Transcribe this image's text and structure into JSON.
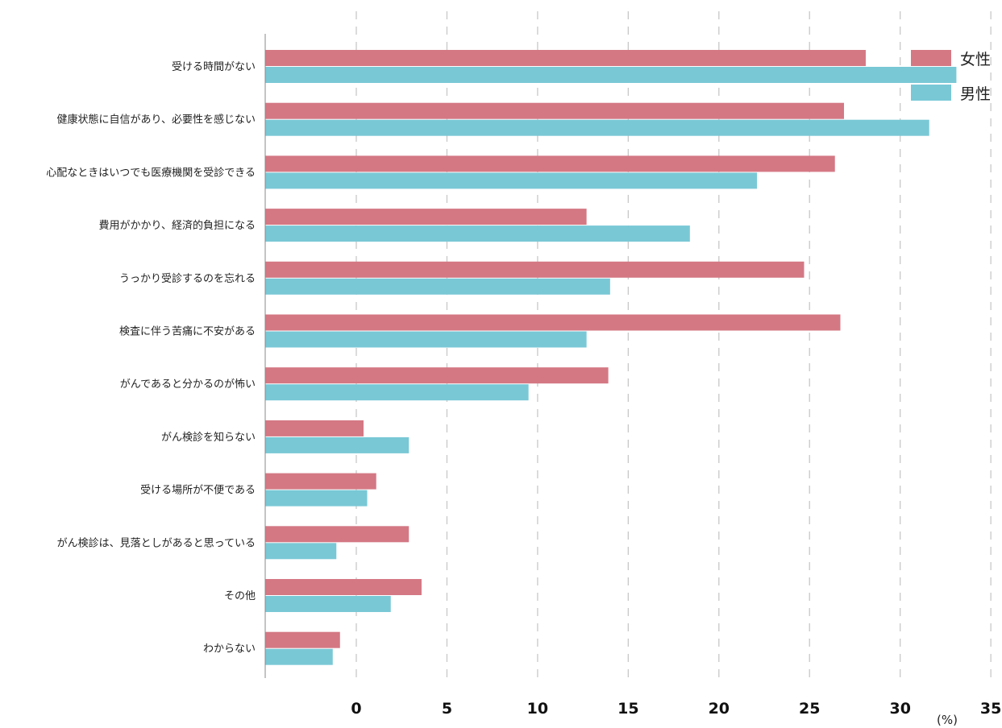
{
  "chart_data": {
    "type": "bar",
    "orientation": "horizontal",
    "title": "",
    "xlabel": "",
    "ylabel": "",
    "unit": "(%)",
    "xlim": [
      -5,
      37
    ],
    "xticks": [
      0,
      5,
      10,
      15,
      20,
      25,
      30,
      35
    ],
    "grid": "vertical-dashed",
    "legend_position": "top-right",
    "categories": [
      "受ける時間がない",
      "健康状態に自信があり、必要性を感じない",
      "心配なときはいつでも医療機関を受診できる",
      "費用がかかり、経済的負担になる",
      "うっかり受診するのを忘れる",
      "検査に伴う苦痛に不安がある",
      "がんであると分かるのが怖い",
      "がん検診を知らない",
      "受ける場所が不便である",
      "がん検診は、見落としがあると思っている",
      "その他",
      "わからない"
    ],
    "series": [
      {
        "name": "女性",
        "color": "#d47884",
        "values": [
          28.1,
          26.9,
          26.4,
          12.7,
          24.7,
          26.7,
          13.9,
          0.4,
          1.1,
          2.9,
          3.6,
          -0.9
        ]
      },
      {
        "name": "男性",
        "color": "#79c8d6",
        "values": [
          33.1,
          31.6,
          22.1,
          18.4,
          14.0,
          12.7,
          9.5,
          2.9,
          0.6,
          -1.1,
          1.9,
          -1.3
        ]
      }
    ]
  }
}
